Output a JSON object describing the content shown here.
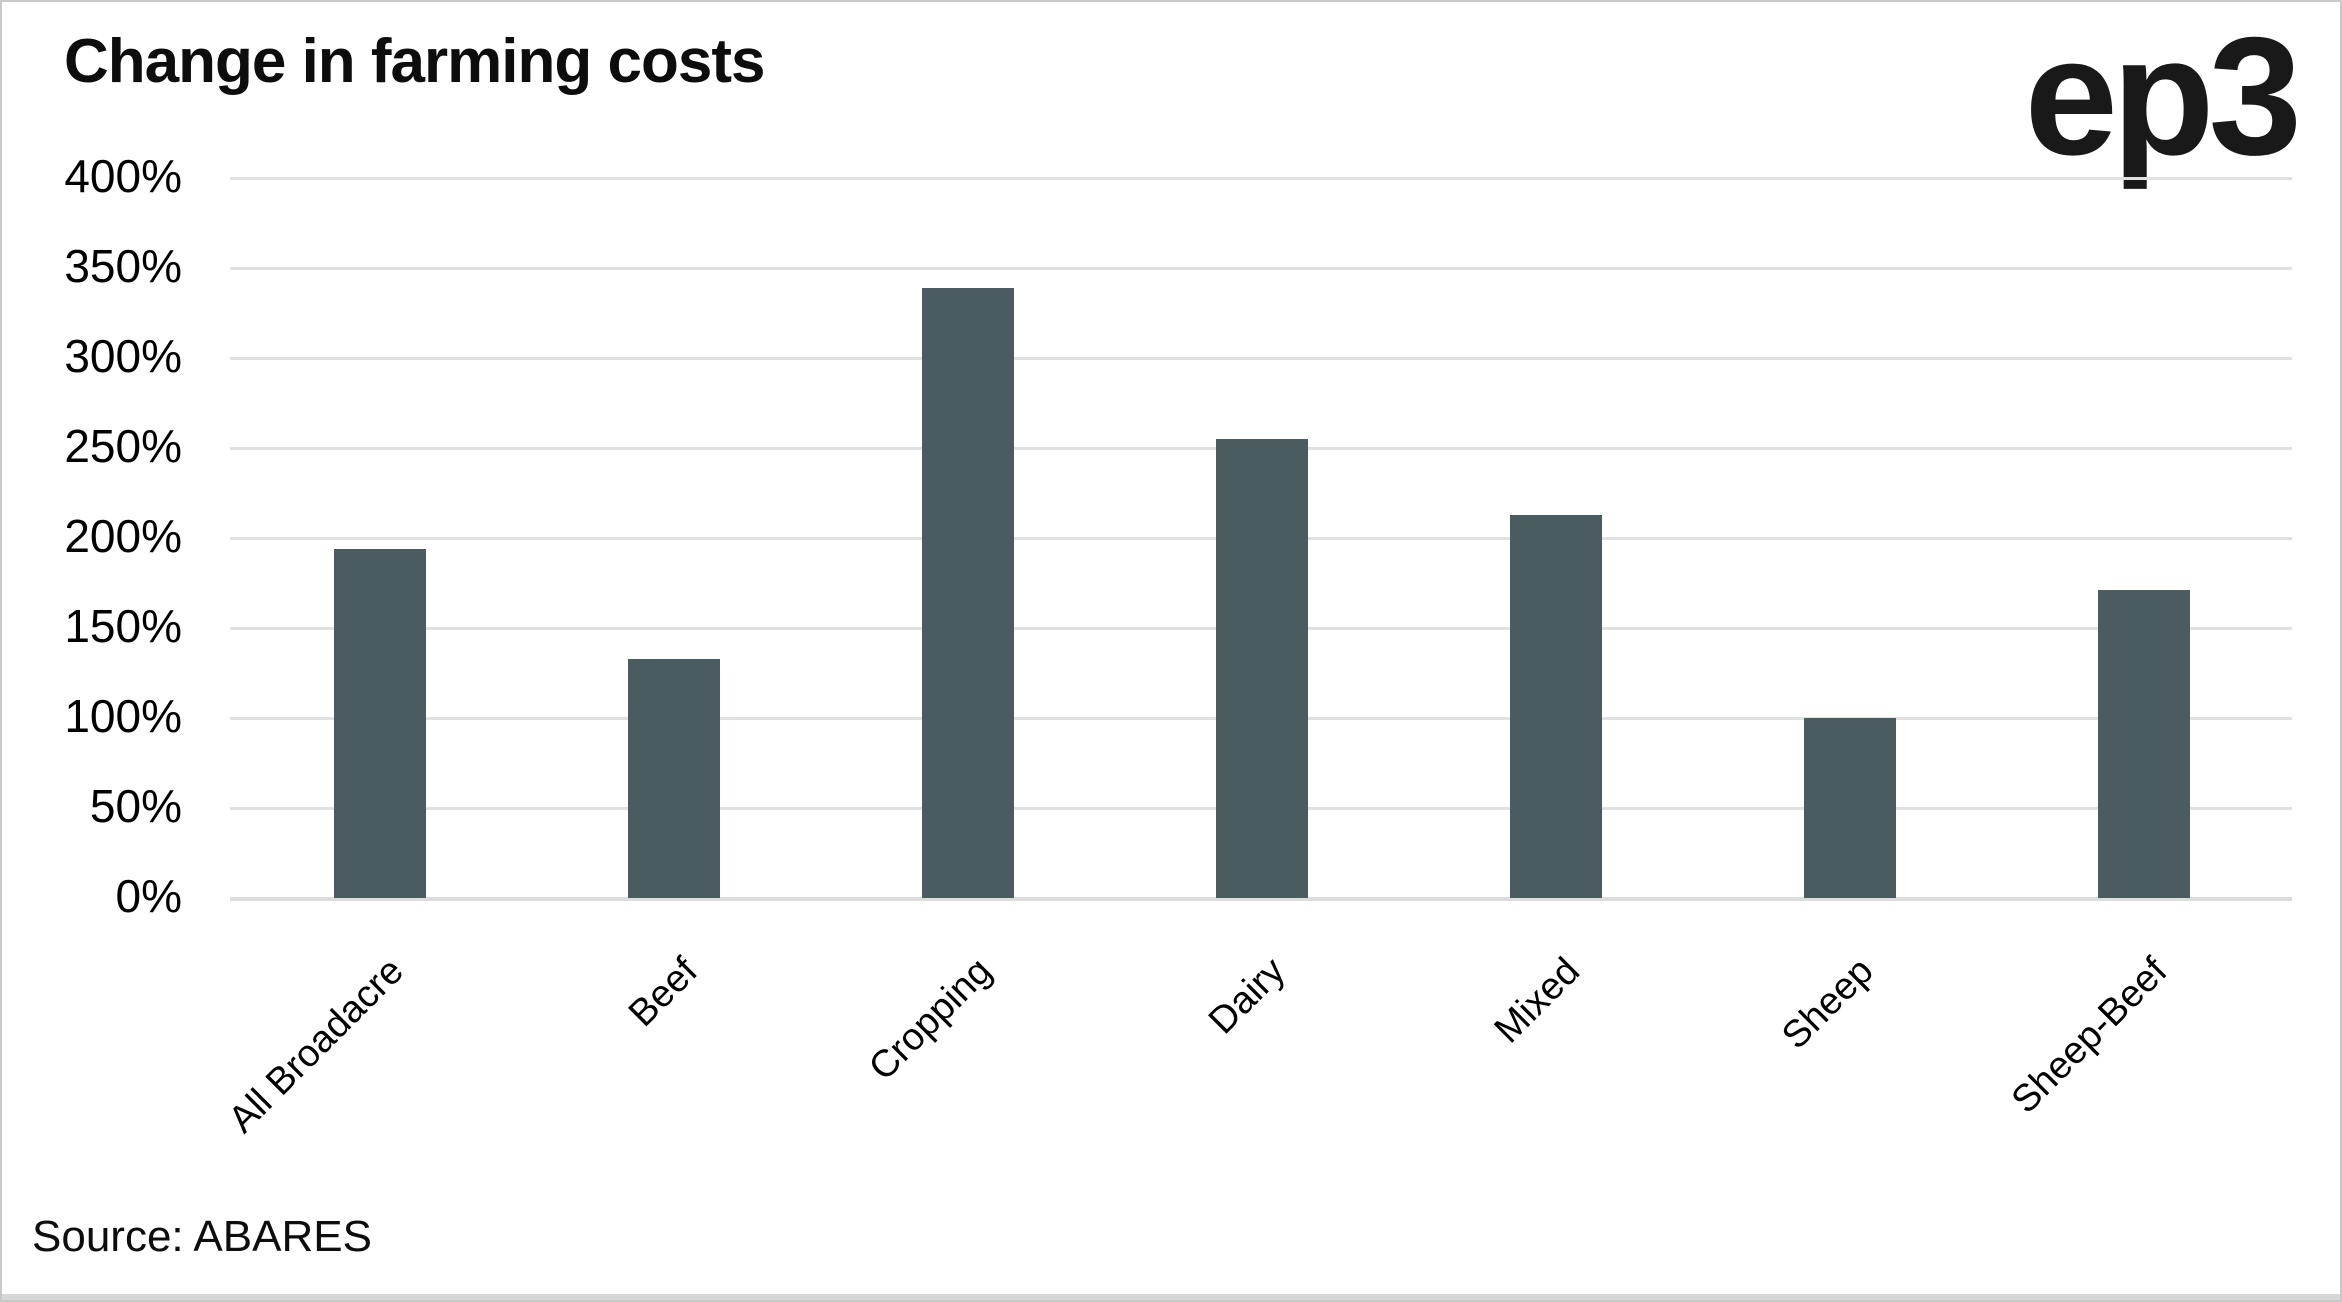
{
  "header": {
    "title": "Change in farming costs",
    "logo": "ep3"
  },
  "source": "Source: ABARES",
  "colors": {
    "bar": "#4a5c60",
    "gridline": "#e1e1e1",
    "text": "#000000",
    "frame_border": "#c9c9c9"
  },
  "chart_data": {
    "type": "bar",
    "title": "Change in farming costs",
    "categories": [
      "All Broadacre",
      "Beef",
      "Cropping",
      "Dairy",
      "Mixed",
      "Sheep",
      "Sheep-Beef"
    ],
    "values": [
      194,
      133,
      339,
      255,
      213,
      100,
      171
    ],
    "unit": "%",
    "xlabel": "",
    "ylabel": "",
    "ylim": [
      0,
      400
    ],
    "ytick_step": 50,
    "ytick_labels": [
      "400%",
      "350%",
      "300%",
      "250%",
      "200%",
      "150%",
      "100%",
      "50%",
      "0%"
    ],
    "grid": "horizontal-only",
    "legend": "none",
    "x_tick_rotation_deg": 45,
    "bar_color": "#4a5c60",
    "source": "Source: ABARES"
  }
}
